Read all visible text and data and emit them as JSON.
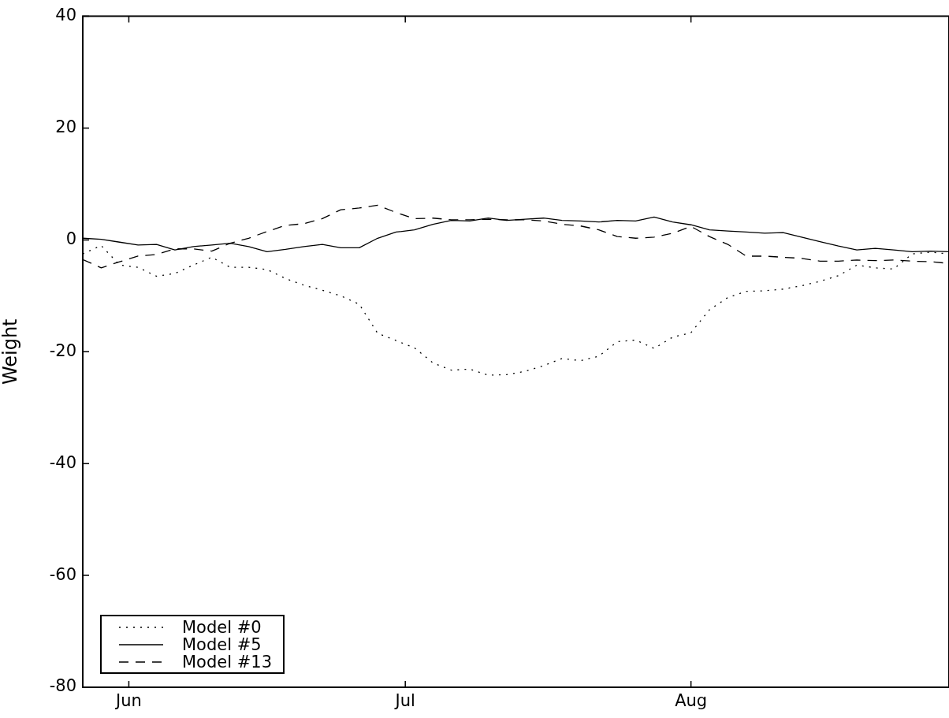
{
  "chart_data": {
    "type": "line",
    "ylabel": "Weight",
    "x": [
      "--05-27",
      "--05-29",
      "--05-31",
      "--06-02",
      "--06-04",
      "--06-06",
      "--06-08",
      "--06-10",
      "--06-12",
      "--06-14",
      "--06-16",
      "--06-18",
      "--06-20",
      "--06-22",
      "--06-24",
      "--06-26",
      "--06-28",
      "--06-30",
      "--07-02",
      "--07-04",
      "--07-06",
      "--07-08",
      "--07-10",
      "--07-12",
      "--07-14",
      "--07-16",
      "--07-18",
      "--07-20",
      "--07-22",
      "--07-24",
      "--07-26",
      "--07-28",
      "--07-30",
      "--08-01",
      "--08-03",
      "--08-05",
      "--08-07",
      "--08-09",
      "--08-11",
      "--08-13",
      "--08-15",
      "--08-17",
      "--08-19",
      "--08-21",
      "--08-23",
      "--08-25",
      "--08-27",
      "--08-29"
    ],
    "series": [
      {
        "name": "Model #0",
        "color": "#000000",
        "line_style": "dotted",
        "values": [
          -2.5,
          -1.0,
          -4.5,
          -4.9,
          -6.5,
          -6.0,
          -4.5,
          -3.1,
          -4.9,
          -4.9,
          -5.3,
          -6.9,
          -8.1,
          -9.0,
          -10.0,
          -11.5,
          -16.7,
          -18.0,
          -19.3,
          -22.0,
          -23.3,
          -23.1,
          -24.2,
          -24.1,
          -23.5,
          -22.5,
          -21.2,
          -21.6,
          -20.8,
          -18.2,
          -17.9,
          -19.4,
          -17.4,
          -16.6,
          -12.5,
          -10.3,
          -9.2,
          -9.1,
          -8.8,
          -8.2,
          -7.4,
          -6.4,
          -4.5,
          -5.0,
          -5.2,
          -2.5,
          -2.2,
          -2.5
        ]
      },
      {
        "name": "Model #5",
        "color": "#000000",
        "line_style": "solid",
        "values": [
          0.3,
          0.1,
          -0.4,
          -0.9,
          -0.8,
          -1.8,
          -1.2,
          -0.9,
          -0.6,
          -1.2,
          -2.1,
          -1.7,
          -1.2,
          -0.8,
          -1.4,
          -1.4,
          0.3,
          1.4,
          1.8,
          2.8,
          3.5,
          3.4,
          3.9,
          3.5,
          3.7,
          3.9,
          3.5,
          3.4,
          3.2,
          3.5,
          3.4,
          4.1,
          3.2,
          2.7,
          1.8,
          1.6,
          1.4,
          1.2,
          1.3,
          0.5,
          -0.3,
          -1.1,
          -1.8,
          -1.5,
          -1.8,
          -2.1,
          -2.0,
          -2.1
        ]
      },
      {
        "name": "Model #13",
        "color": "#000000",
        "line_style": "dashed",
        "values": [
          -3.5,
          -5.0,
          -3.9,
          -2.9,
          -2.6,
          -1.6,
          -1.6,
          -2.0,
          -0.6,
          0.3,
          1.5,
          2.6,
          2.9,
          3.8,
          5.4,
          5.7,
          6.2,
          4.9,
          3.8,
          3.9,
          3.6,
          3.6,
          3.7,
          3.6,
          3.6,
          3.4,
          2.8,
          2.5,
          1.8,
          0.6,
          0.3,
          0.5,
          1.2,
          2.4,
          0.6,
          -0.8,
          -2.9,
          -2.9,
          -3.1,
          -3.3,
          -3.8,
          -3.8,
          -3.6,
          -3.7,
          -3.6,
          -3.8,
          -3.9,
          -4.2
        ]
      }
    ],
    "xlim": [
      "--05-27",
      "--08-29"
    ],
    "xticks": [
      {
        "value": "--06-01",
        "label": "Jun"
      },
      {
        "value": "--07-01",
        "label": "Jul"
      },
      {
        "value": "--08-01",
        "label": "Aug"
      }
    ],
    "ylim": [
      -80,
      40
    ],
    "yticks": [
      -80,
      -60,
      -40,
      -20,
      0,
      20,
      40
    ],
    "grid": false,
    "legend": "bottom left",
    "marker": "none"
  }
}
